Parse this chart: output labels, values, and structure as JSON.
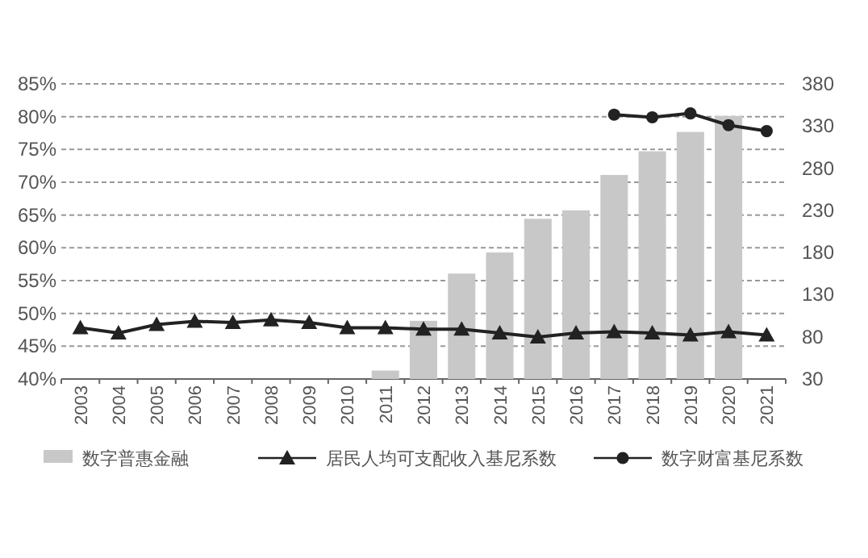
{
  "chart_data": {
    "type": "bar",
    "categories": [
      "2003",
      "2004",
      "2005",
      "2006",
      "2007",
      "2008",
      "2009",
      "2010",
      "2011",
      "2012",
      "2013",
      "2014",
      "2015",
      "2016",
      "2017",
      "2018",
      "2019",
      "2020",
      "2021"
    ],
    "series": [
      {
        "name": "数字普惠金融",
        "axis": "y2",
        "color": "#c8c8c8",
        "values": [
          null,
          null,
          null,
          null,
          null,
          null,
          null,
          null,
          40,
          99,
          155,
          180,
          220,
          230,
          272,
          300,
          323,
          342,
          null
        ]
      },
      {
        "name": "居民人均可支配收入基尼系数",
        "type": "line",
        "marker": "triangle",
        "color": "#222222",
        "values": [
          47.8,
          47.0,
          48.3,
          48.8,
          48.6,
          49.0,
          48.6,
          47.8,
          47.8,
          47.6,
          47.6,
          47.0,
          46.4,
          47.0,
          47.2,
          47.0,
          46.7,
          47.2,
          46.7
        ]
      },
      {
        "name": "数字财富基尼系数",
        "type": "line",
        "marker": "circle",
        "color": "#222222",
        "values": [
          null,
          null,
          null,
          null,
          null,
          null,
          null,
          null,
          null,
          null,
          null,
          null,
          null,
          null,
          80.3,
          79.9,
          80.5,
          78.7,
          77.8
        ]
      }
    ],
    "ylim": [
      40,
      85
    ],
    "yticks": [
      {
        "value": 40,
        "label": "40%"
      },
      {
        "value": 45,
        "label": "45%"
      },
      {
        "value": 50,
        "label": "50%"
      },
      {
        "value": 55,
        "label": "55%"
      },
      {
        "value": 60,
        "label": "60%"
      },
      {
        "value": 65,
        "label": "65%"
      },
      {
        "value": 70,
        "label": "70%"
      },
      {
        "value": 75,
        "label": "75%"
      },
      {
        "value": 80,
        "label": "80%"
      },
      {
        "value": 85,
        "label": "85%"
      }
    ],
    "y2lim": [
      30,
      380
    ],
    "y2ticks": [
      30,
      80,
      130,
      180,
      230,
      280,
      330,
      380
    ],
    "grid": "y",
    "legend": "bottom"
  }
}
